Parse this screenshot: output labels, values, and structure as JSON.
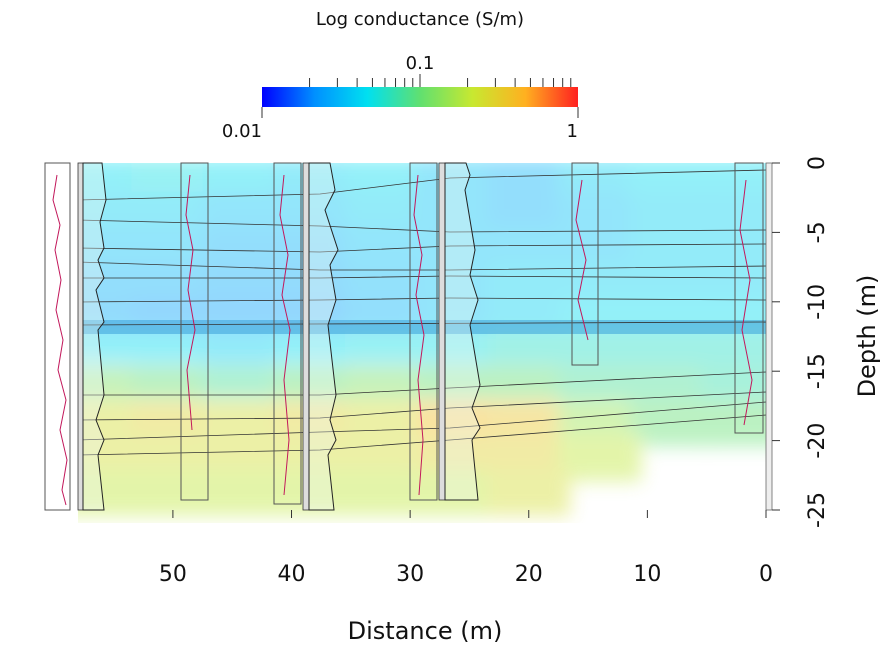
{
  "chart_data": {
    "type": "section",
    "title": "Log conductance (S/m)",
    "xlabel": "Distance (m)",
    "ylabel": "Depth (m)",
    "xlim": [
      58,
      0
    ],
    "ylim": [
      0,
      -25
    ],
    "xticks": [
      50,
      40,
      30,
      20,
      10,
      0
    ],
    "yticks": [
      0,
      -5,
      -10,
      -15,
      -20,
      -25
    ],
    "x": [
      56,
      50,
      44,
      38,
      32,
      26,
      20,
      14,
      8,
      2
    ],
    "depths": [
      -1.25,
      -3.75,
      -6.25,
      -8.75,
      -11.25,
      -13.75,
      -16.25,
      -18.75,
      -21.25,
      -23.75
    ],
    "values": [
      [
        0.045,
        0.05,
        0.045,
        0.04,
        0.045,
        0.035,
        0.03,
        0.04,
        0.045,
        0.045
      ],
      [
        0.04,
        0.04,
        0.035,
        0.035,
        0.04,
        0.035,
        0.03,
        0.035,
        0.04,
        0.04
      ],
      [
        0.035,
        0.035,
        0.03,
        0.03,
        0.035,
        0.035,
        0.035,
        0.035,
        0.04,
        0.04
      ],
      [
        0.03,
        0.03,
        0.028,
        0.028,
        0.032,
        0.035,
        0.04,
        0.04,
        0.04,
        0.04
      ],
      [
        0.028,
        0.025,
        0.025,
        0.025,
        0.03,
        0.035,
        0.04,
        0.045,
        0.045,
        0.045
      ],
      [
        0.045,
        0.045,
        0.04,
        0.045,
        0.05,
        0.05,
        0.06,
        0.06,
        0.06,
        0.06
      ],
      [
        0.12,
        0.1,
        0.08,
        0.1,
        0.12,
        0.1,
        0.1,
        0.08,
        0.08,
        0.07
      ],
      [
        0.25,
        0.3,
        0.25,
        0.3,
        0.25,
        0.4,
        0.35,
        0.15,
        0.1,
        0.1
      ],
      [
        0.25,
        0.25,
        0.25,
        0.25,
        0.25,
        0.3,
        0.3,
        0.2,
        null,
        null
      ],
      [
        0.2,
        0.2,
        0.2,
        0.2,
        0.2,
        0.2,
        0.25,
        null,
        null,
        null
      ]
    ],
    "colorbar_lim": [
      0.01,
      1
    ],
    "colorbar_ticks": [
      0.01,
      0.1,
      1
    ],
    "colorbar_minor_ticks": [
      0.02,
      0.03,
      0.04,
      0.05,
      0.06,
      0.07,
      0.08,
      0.09,
      0.2,
      0.3,
      0.4,
      0.5,
      0.6,
      0.7,
      0.8,
      0.9
    ],
    "colormap": [
      "#0000ff",
      "#0090ff",
      "#00e0f0",
      "#60e070",
      "#c8e830",
      "#ffb020",
      "#ff2020"
    ],
    "log_scale": true
  }
}
